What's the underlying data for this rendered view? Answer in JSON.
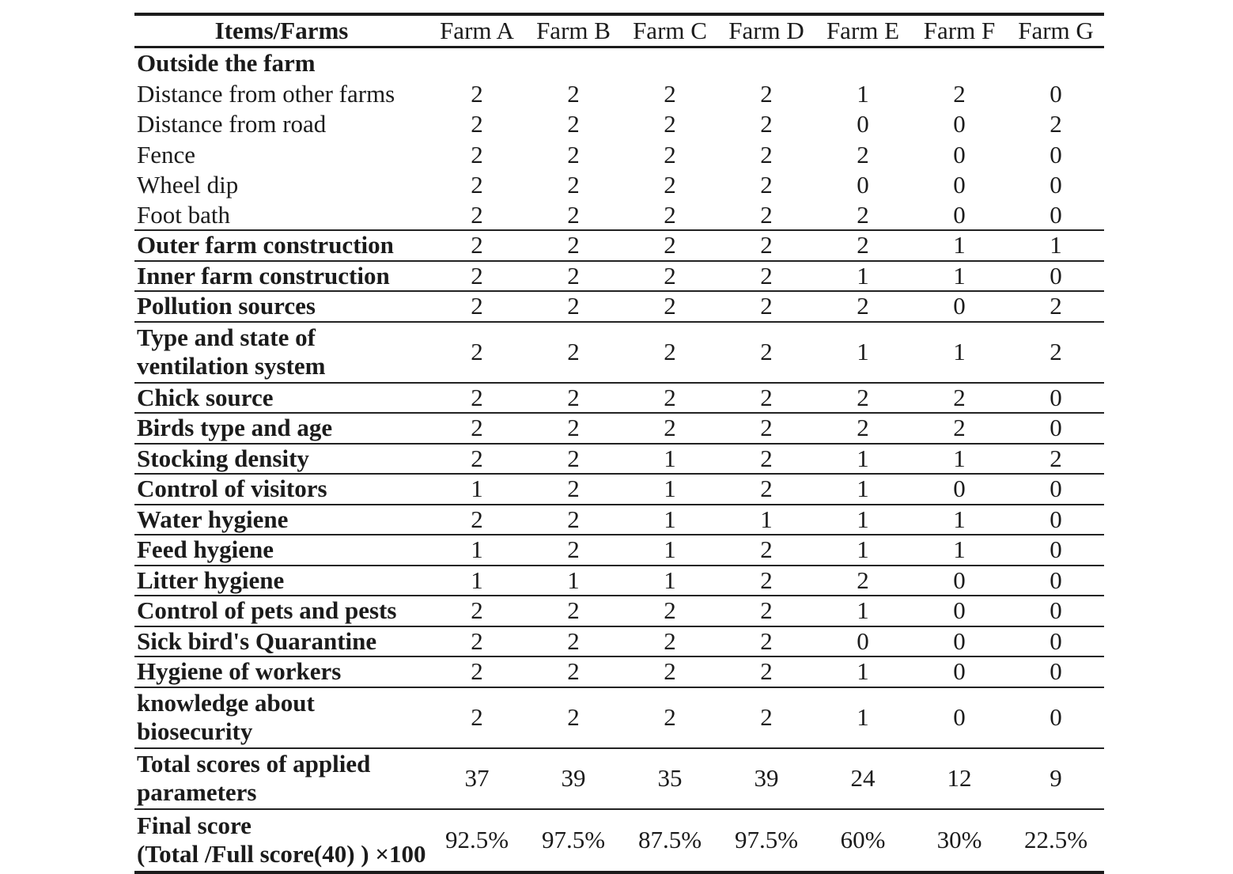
{
  "page": {
    "background_color": "#ffffff",
    "text_color": "#1b1b1b",
    "rule_color": "#1c1c1c"
  },
  "table": {
    "header": {
      "items_label": "Items/Farms",
      "farms": [
        "Farm A",
        "Farm B",
        "Farm C",
        "Farm D",
        "Farm E",
        "Farm F",
        "Farm G"
      ]
    },
    "rows": [
      {
        "label": "Outside the farm",
        "bold": true,
        "values": [
          "",
          "",
          "",
          "",
          "",
          "",
          ""
        ],
        "rule_below": false
      },
      {
        "label": "Distance from other farms",
        "bold": false,
        "values": [
          "2",
          "2",
          "2",
          "2",
          "1",
          "2",
          "0"
        ],
        "rule_below": false
      },
      {
        "label": "Distance from road",
        "bold": false,
        "values": [
          "2",
          "2",
          "2",
          "2",
          "0",
          "0",
          "2"
        ],
        "rule_below": false
      },
      {
        "label": "Fence",
        "bold": false,
        "values": [
          "2",
          "2",
          "2",
          "2",
          "2",
          "0",
          "0"
        ],
        "rule_below": false
      },
      {
        "label": "Wheel dip",
        "bold": false,
        "values": [
          "2",
          "2",
          "2",
          "2",
          "0",
          "0",
          "0"
        ],
        "rule_below": false
      },
      {
        "label": "Foot bath",
        "bold": false,
        "values": [
          "2",
          "2",
          "2",
          "2",
          "2",
          "0",
          "0"
        ],
        "rule_below": true
      },
      {
        "label": "Outer farm construction",
        "bold": true,
        "values": [
          "2",
          "2",
          "2",
          "2",
          "2",
          "1",
          "1"
        ],
        "rule_below": true
      },
      {
        "label": "Inner farm construction",
        "bold": true,
        "values": [
          "2",
          "2",
          "2",
          "2",
          "1",
          "1",
          "0"
        ],
        "rule_below": true
      },
      {
        "label": "Pollution sources",
        "bold": true,
        "values": [
          "2",
          "2",
          "2",
          "2",
          "2",
          "0",
          "2"
        ],
        "rule_below": true
      },
      {
        "label": "Type and state of\nventilation system",
        "bold": true,
        "values": [
          "2",
          "2",
          "2",
          "2",
          "1",
          "1",
          "2"
        ],
        "rule_below": true
      },
      {
        "label": "Chick source",
        "bold": true,
        "values": [
          "2",
          "2",
          "2",
          "2",
          "2",
          "2",
          "0"
        ],
        "rule_below": true
      },
      {
        "label": "Birds type and age",
        "bold": true,
        "values": [
          "2",
          "2",
          "2",
          "2",
          "2",
          "2",
          "0"
        ],
        "rule_below": true
      },
      {
        "label": "Stocking density",
        "bold": true,
        "values": [
          "2",
          "2",
          "1",
          "2",
          "1",
          "1",
          "2"
        ],
        "rule_below": true
      },
      {
        "label": "Control of visitors",
        "bold": true,
        "values": [
          "1",
          "2",
          "1",
          "2",
          "1",
          "0",
          "0"
        ],
        "rule_below": true
      },
      {
        "label": "Water hygiene",
        "bold": true,
        "values": [
          "2",
          "2",
          "1",
          "1",
          "1",
          "1",
          "0"
        ],
        "rule_below": true
      },
      {
        "label": "Feed hygiene",
        "bold": true,
        "values": [
          "1",
          "2",
          "1",
          "2",
          "1",
          "1",
          "0"
        ],
        "rule_below": true
      },
      {
        "label": "Litter hygiene",
        "bold": true,
        "values": [
          "1",
          "1",
          "1",
          "2",
          "2",
          "0",
          "0"
        ],
        "rule_below": true
      },
      {
        "label": "Control of pets and pests",
        "bold": true,
        "values": [
          "2",
          "2",
          "2",
          "2",
          "1",
          "0",
          "0"
        ],
        "rule_below": true
      },
      {
        "label": "Sick bird's Quarantine",
        "bold": true,
        "values": [
          "2",
          "2",
          "2",
          "2",
          "0",
          "0",
          "0"
        ],
        "rule_below": true
      },
      {
        "label": "Hygiene of workers",
        "bold": true,
        "values": [
          "2",
          "2",
          "2",
          "2",
          "1",
          "0",
          "0"
        ],
        "rule_below": true
      },
      {
        "label": "knowledge about\nbiosecurity",
        "bold": true,
        "values": [
          "2",
          "2",
          "2",
          "2",
          "1",
          "0",
          "0"
        ],
        "rule_below": true
      },
      {
        "label": "Total scores of  applied\nparameters",
        "bold": true,
        "values": [
          "37",
          "39",
          "35",
          "39",
          "24",
          "12",
          "9"
        ],
        "rule_below": true
      },
      {
        "label": "Final score\n(Total /Full score(40) ) ×100",
        "bold": true,
        "values": [
          "92.5%",
          "97.5%",
          "87.5%",
          "97.5%",
          "60%",
          "30%",
          "22.5%"
        ],
        "rule_below": false
      }
    ]
  }
}
